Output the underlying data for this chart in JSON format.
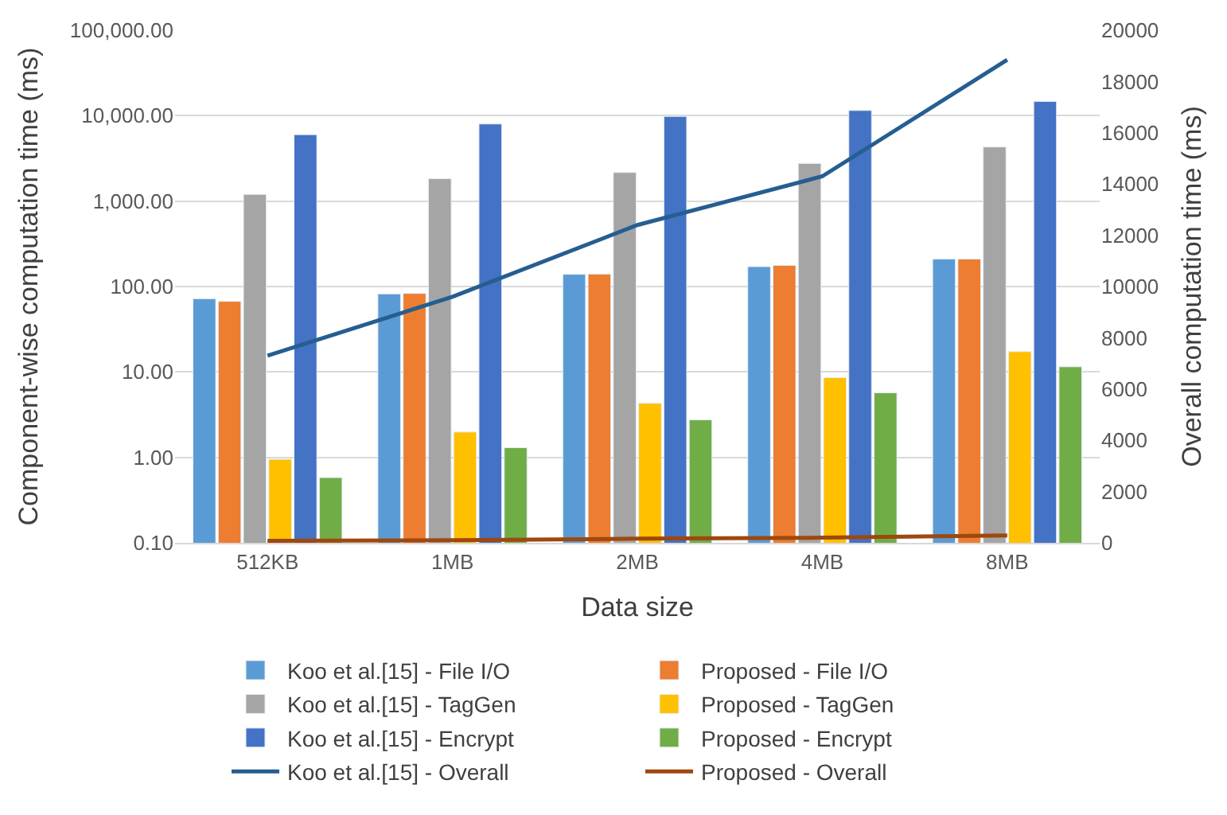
{
  "chart_data": {
    "type": "bar",
    "xlabel": "Data size",
    "ylabel": "Component-wise computation time (ms)",
    "y2label": "Overall computation time (ms)",
    "categories": [
      "512KB",
      "1MB",
      "2MB",
      "4MB",
      "8MB"
    ],
    "series": [
      {
        "name": "Koo et al.[15] - File I/O",
        "color": "#5b9bd5",
        "values": [
          72,
          82,
          139,
          171,
          210
        ]
      },
      {
        "name": "Proposed - File I/O",
        "color": "#ed7d31",
        "values": [
          67,
          83,
          140,
          177,
          210
        ]
      },
      {
        "name": "Koo et al.[15] - TagGen",
        "color": "#a5a5a5",
        "values": [
          1200,
          1830,
          2160,
          2760,
          4300
        ]
      },
      {
        "name": "Proposed - TagGen",
        "color": "#ffc000",
        "values": [
          0.95,
          1.98,
          4.3,
          8.6,
          17.3
        ]
      },
      {
        "name": "Koo et al.[15] - Encrypt",
        "color": "#4472c4",
        "values": [
          6000,
          8000,
          9800,
          11500,
          14700
        ]
      },
      {
        "name": "Proposed - Encrypt",
        "color": "#70ad47",
        "values": [
          0.58,
          1.3,
          2.75,
          5.7,
          11.5
        ]
      },
      {
        "name": "Koo et al.[15] - Overall",
        "color": "#255e91",
        "type": "line",
        "axis": "y2",
        "values": [
          7300,
          9600,
          12400,
          14300,
          18850
        ]
      },
      {
        "name": "Proposed - Overall",
        "color": "#9e480e",
        "type": "line",
        "axis": "y2",
        "values": [
          80,
          100,
          160,
          200,
          290
        ]
      }
    ],
    "log": "y",
    "ylim": [
      0.1,
      100000
    ],
    "yticks": [
      {
        "value": 0.1,
        "label": "0.10"
      },
      {
        "value": 1,
        "label": "1.00"
      },
      {
        "value": 10,
        "label": "10.00"
      },
      {
        "value": 100,
        "label": "100.00"
      },
      {
        "value": 1000,
        "label": "1,000.00"
      },
      {
        "value": 10000,
        "label": "10,000.00"
      },
      {
        "value": 100000,
        "label": "100,000.00"
      }
    ],
    "y2lim": [
      0,
      20000
    ],
    "y2ticks": [
      0,
      2000,
      4000,
      6000,
      8000,
      10000,
      12000,
      14000,
      16000,
      18000,
      20000
    ],
    "grid": "y",
    "legend": "bottom",
    "marker": "none"
  }
}
